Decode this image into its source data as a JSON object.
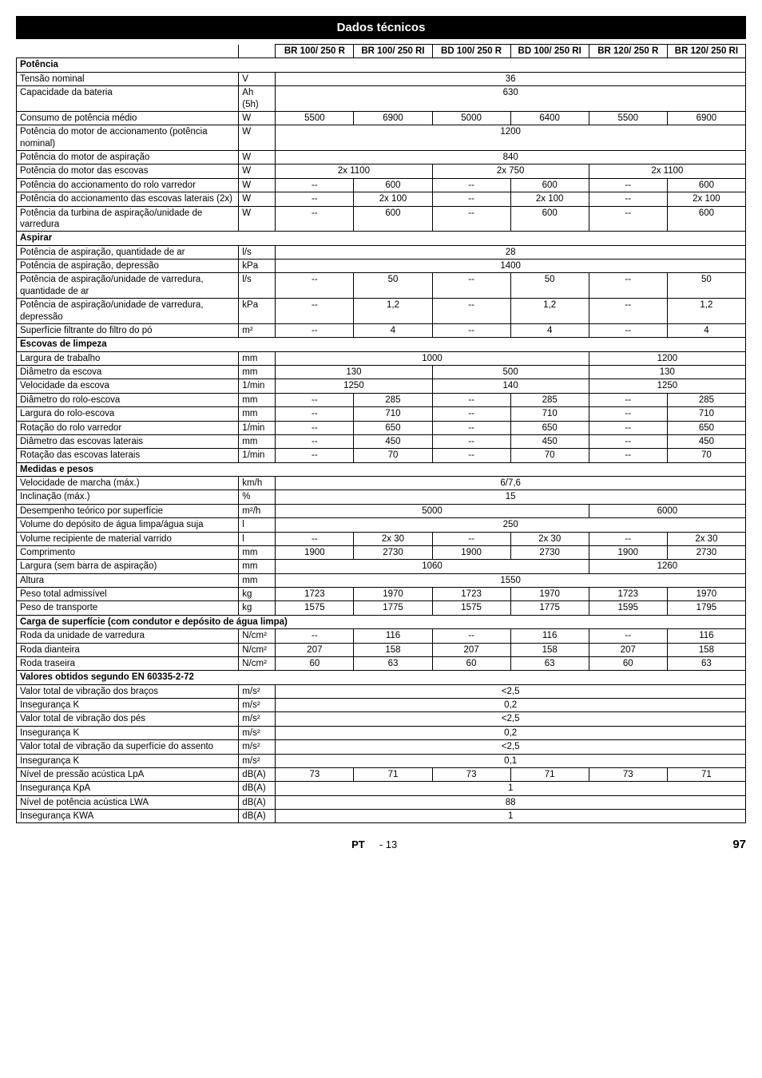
{
  "title": "Dados técnicos",
  "columns": [
    "BR 100/\n250 R",
    "BR 100/\n250 RI",
    "BD 100/\n250 R",
    "BD 100/\n250 RI",
    "BR 120/\n250 R",
    "BR 120/\n250 RI"
  ],
  "footer": {
    "lang": "PT",
    "pageRel": "- 13",
    "pageAbs": "97"
  },
  "rows": [
    {
      "type": "section",
      "label": "Potência"
    },
    {
      "label": "Tensão nominal",
      "unit": "V",
      "span": 6,
      "val": "36"
    },
    {
      "label": "Capacidade da bateria",
      "unit": "Ah (5h)",
      "span": 6,
      "val": "630"
    },
    {
      "label": "Consumo de potência médio",
      "unit": "W",
      "vals": [
        "5500",
        "6900",
        "5000",
        "6400",
        "5500",
        "6900"
      ]
    },
    {
      "label": "Potência do motor de accionamento (potên­cia nominal)",
      "unit": "W",
      "span": 6,
      "val": "1200"
    },
    {
      "label": "Potência do motor de aspiração",
      "unit": "W",
      "span": 6,
      "val": "840"
    },
    {
      "label": "Potência do motor das escovas",
      "unit": "W",
      "merge": 3,
      "vals": [
        "2x 1100",
        "2x 750",
        "2x 1100"
      ]
    },
    {
      "label": "Potência do accionamento do rolo varredor",
      "unit": "W",
      "vals": [
        "--",
        "600",
        "--",
        "600",
        "--",
        "600"
      ]
    },
    {
      "label": "Potência do accionamento das escovas late­rais (2x)",
      "unit": "W",
      "vals": [
        "--",
        "2x 100",
        "--",
        "2x 100",
        "--",
        "2x 100"
      ]
    },
    {
      "label": "Potência da turbina de aspiração/unidade de varredura",
      "unit": "W",
      "vals": [
        "--",
        "600",
        "--",
        "600",
        "--",
        "600"
      ]
    },
    {
      "type": "section",
      "label": "Aspirar"
    },
    {
      "label": "Potência de aspiração, quantidade de ar",
      "unit": "l/s",
      "span": 6,
      "val": "28"
    },
    {
      "label": "Potência de aspiração, depressão",
      "unit": "kPa",
      "span": 6,
      "val": "1400"
    },
    {
      "label": "Potência de aspiração/unidade de varredura, quantidade de ar",
      "unit": "l/s",
      "vals": [
        "--",
        "50",
        "--",
        "50",
        "--",
        "50"
      ]
    },
    {
      "label": "Potência de aspiração/unidade de varredura, depressão",
      "unit": "kPa",
      "vals": [
        "--",
        "1,2",
        "--",
        "1,2",
        "--",
        "1,2"
      ]
    },
    {
      "label": "Superfície filtrante do filtro do pó",
      "unit": "m²",
      "vals": [
        "--",
        "4",
        "--",
        "4",
        "--",
        "4"
      ]
    },
    {
      "type": "section",
      "label": "Escovas de limpeza"
    },
    {
      "label": "Largura de trabalho",
      "unit": "mm",
      "merge": "4-2",
      "vals": [
        "1000",
        "1200"
      ]
    },
    {
      "label": "Diâmetro da escova",
      "unit": "mm",
      "merge": 3,
      "vals": [
        "130",
        "500",
        "130"
      ]
    },
    {
      "label": "Velocidade da escova",
      "unit": "1/min",
      "merge": 3,
      "vals": [
        "1250",
        "140",
        "1250"
      ]
    },
    {
      "label": "Diâmetro do rolo-escova",
      "unit": "mm",
      "vals": [
        "--",
        "285",
        "--",
        "285",
        "--",
        "285"
      ]
    },
    {
      "label": "Largura do rolo-escova",
      "unit": "mm",
      "vals": [
        "--",
        "710",
        "--",
        "710",
        "--",
        "710"
      ]
    },
    {
      "label": "Rotação do rolo varredor",
      "unit": "1/min",
      "vals": [
        "--",
        "650",
        "--",
        "650",
        "--",
        "650"
      ]
    },
    {
      "label": "Diâmetro das escovas laterais",
      "unit": "mm",
      "vals": [
        "--",
        "450",
        "--",
        "450",
        "--",
        "450"
      ]
    },
    {
      "label": "Rotação das escovas laterais",
      "unit": "1/min",
      "vals": [
        "--",
        "70",
        "--",
        "70",
        "--",
        "70"
      ]
    },
    {
      "type": "section",
      "label": "Medidas e pesos"
    },
    {
      "label": "Velocidade de marcha (máx.)",
      "unit": "km/h",
      "span": 6,
      "val": "6/7,6"
    },
    {
      "label": "Inclinação (máx.)",
      "unit": "%",
      "span": 6,
      "val": "15"
    },
    {
      "label": "Desempenho teórico por superfície",
      "unit": "m²/h",
      "merge": "4-2",
      "vals": [
        "5000",
        "6000"
      ]
    },
    {
      "label": "Volume do depósito de água limpa/água suja",
      "unit": "l",
      "span": 6,
      "val": "250"
    },
    {
      "label": "Volume recipiente de material varrido",
      "unit": "l",
      "vals": [
        "--",
        "2x 30",
        "--",
        "2x 30",
        "--",
        "2x 30"
      ]
    },
    {
      "label": "Comprimento",
      "unit": "mm",
      "vals": [
        "1900",
        "2730",
        "1900",
        "2730",
        "1900",
        "2730"
      ]
    },
    {
      "label": "Largura (sem barra de aspiração)",
      "unit": "mm",
      "merge": "4-2",
      "vals": [
        "1060",
        "1260"
      ]
    },
    {
      "label": "Altura",
      "unit": "mm",
      "span": 6,
      "val": "1550"
    },
    {
      "label": "Peso total admissível",
      "unit": "kg",
      "vals": [
        "1723",
        "1970",
        "1723",
        "1970",
        "1723",
        "1970"
      ]
    },
    {
      "label": "Peso de transporte",
      "unit": "kg",
      "vals": [
        "1575",
        "1775",
        "1575",
        "1775",
        "1595",
        "1795"
      ]
    },
    {
      "type": "section",
      "label": "Carga de superfície (com condutor e depósito de água limpa)"
    },
    {
      "label": "Roda da unidade de varredura",
      "unit": "N/cm²",
      "vals": [
        "--",
        "116",
        "--",
        "116",
        "--",
        "116"
      ]
    },
    {
      "label": "Roda dianteira",
      "unit": "N/cm²",
      "vals": [
        "207",
        "158",
        "207",
        "158",
        "207",
        "158"
      ]
    },
    {
      "label": "Roda traseira",
      "unit": "N/cm²",
      "vals": [
        "60",
        "63",
        "60",
        "63",
        "60",
        "63"
      ]
    },
    {
      "type": "section",
      "label": "Valores obtidos segundo EN 60335-2-72"
    },
    {
      "label": "Valor total de vibração dos braços",
      "unit": "m/s²",
      "span": 6,
      "val": "<2,5"
    },
    {
      "label": "Insegurança K",
      "unit": "m/s²",
      "span": 6,
      "val": "0,2"
    },
    {
      "label": "Valor total de vibração dos pés",
      "unit": "m/s²",
      "span": 6,
      "val": "<2,5"
    },
    {
      "label": "Insegurança K",
      "unit": "m/s²",
      "span": 6,
      "val": "0,2"
    },
    {
      "label": "Valor total de vibração da superfície do as­sento",
      "unit": "m/s²",
      "span": 6,
      "val": "<2,5"
    },
    {
      "label": "Insegurança K",
      "unit": "m/s²",
      "span": 6,
      "val": "0,1"
    },
    {
      "label": "Nível de pressão acústica LpA",
      "unit": "dB(A)",
      "vals": [
        "73",
        "71",
        "73",
        "71",
        "73",
        "71"
      ]
    },
    {
      "label": "Insegurança KpA",
      "unit": "dB(A)",
      "span": 6,
      "val": "1"
    },
    {
      "label": "Nível de potência acústica LWA",
      "unit": "dB(A)",
      "span": 6,
      "val": "88"
    },
    {
      "label": "Insegurança KWA",
      "unit": "dB(A)",
      "span": 6,
      "val": "1"
    }
  ]
}
